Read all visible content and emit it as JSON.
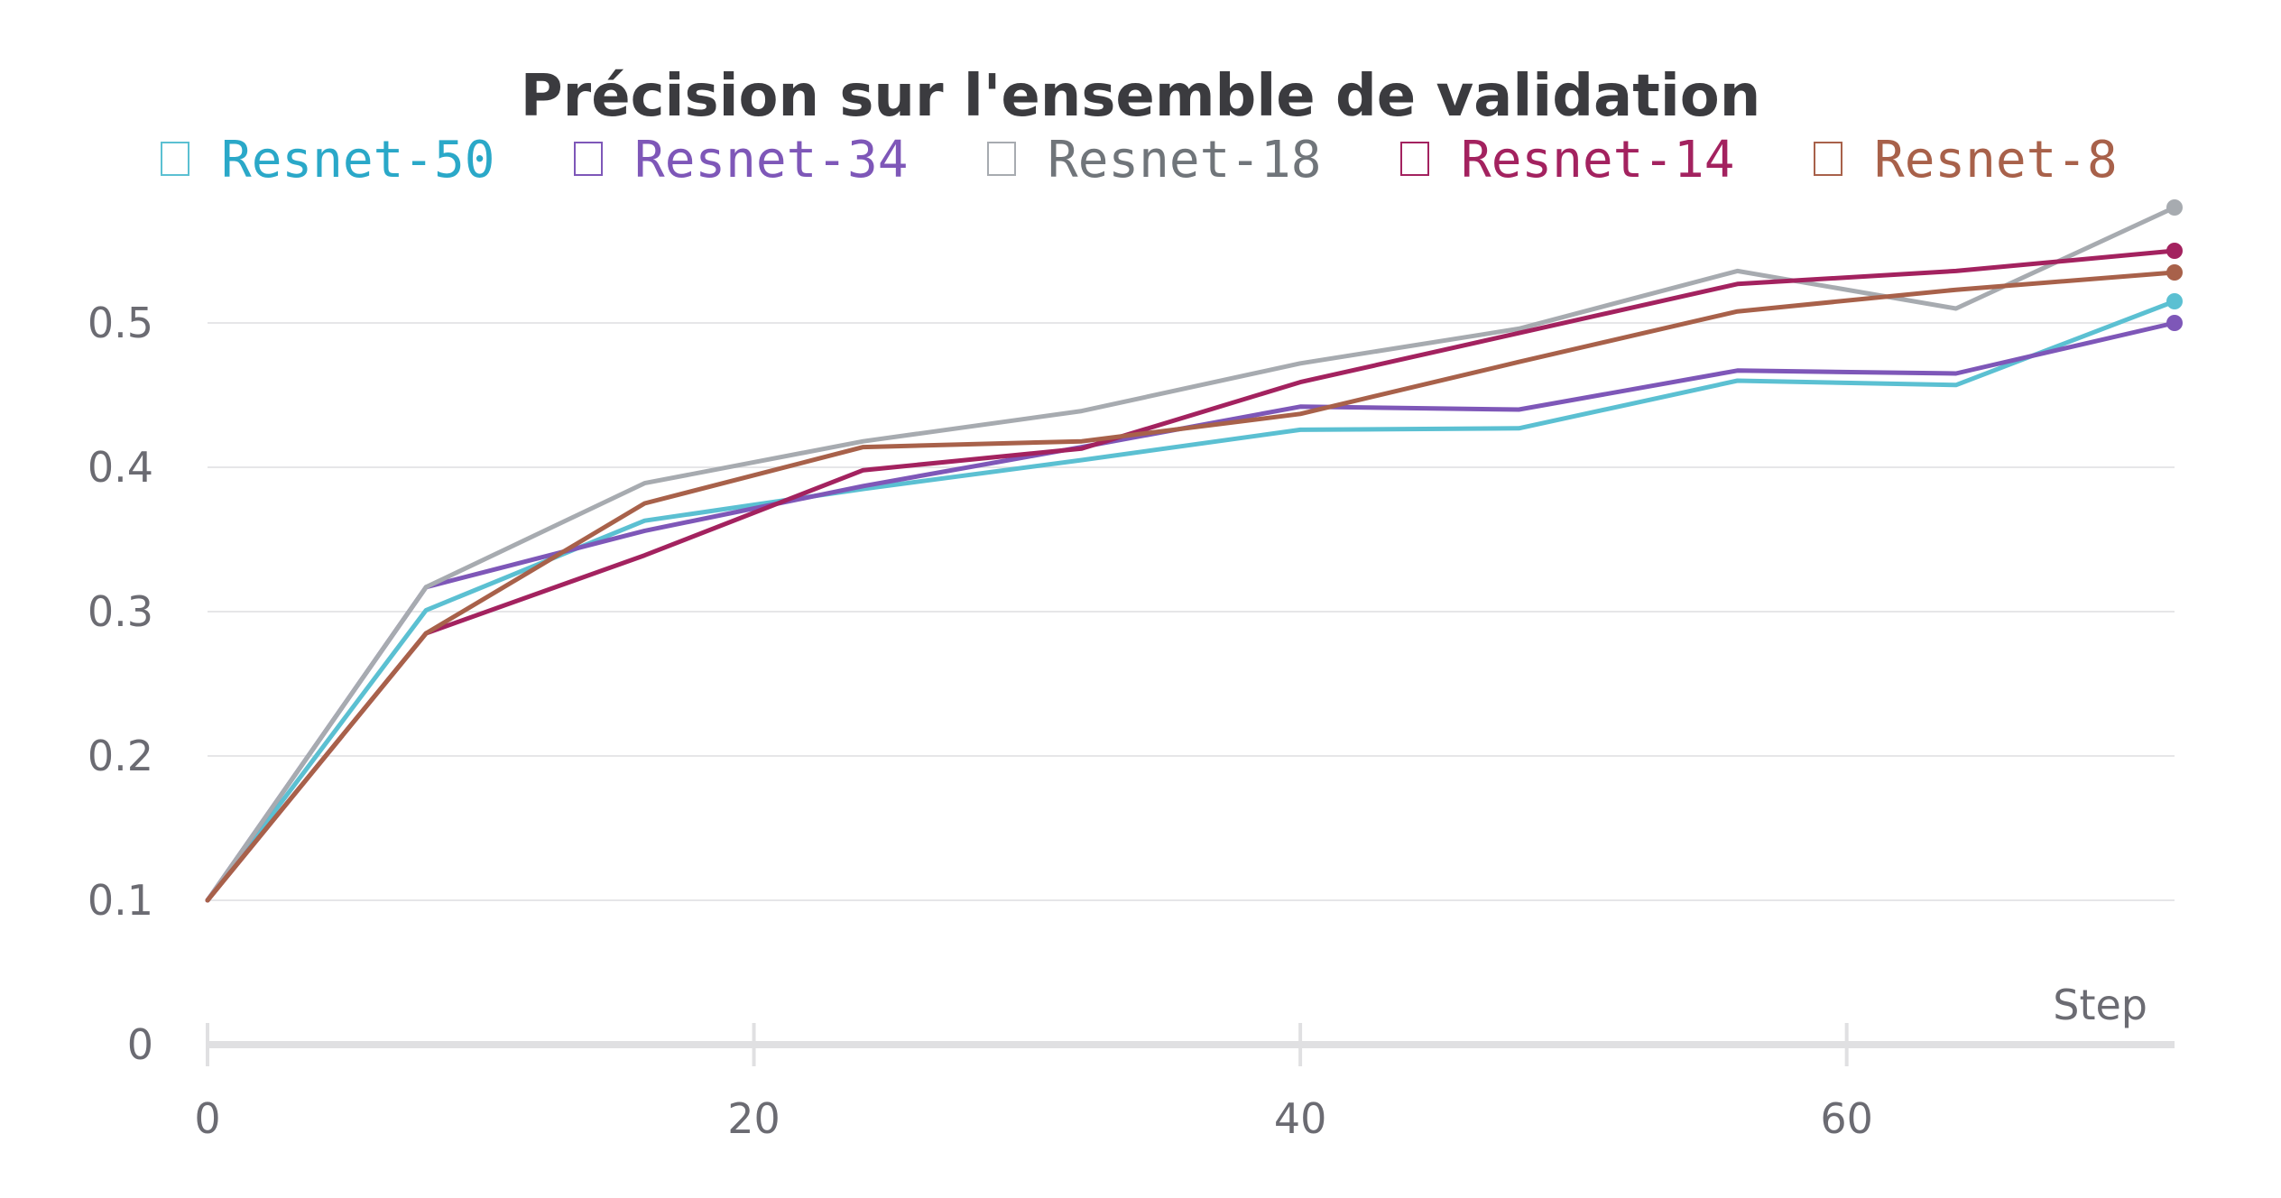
{
  "chart_data": {
    "type": "line",
    "title": "Précision sur l'ensemble de validation",
    "xlabel": "Step",
    "ylabel": "",
    "x": [
      0,
      8,
      16,
      24,
      32,
      40,
      48,
      56,
      64,
      72
    ],
    "xlim": [
      0,
      72
    ],
    "ylim": [
      0,
      0.58
    ],
    "xticks": [
      0,
      20,
      40,
      60
    ],
    "yticks": [
      0,
      0.1,
      0.2,
      0.3,
      0.4,
      0.5
    ],
    "ytick_labels": [
      "0",
      "0.1",
      "0.2",
      "0.3",
      "0.4",
      "0.5"
    ],
    "grid": "horizontal",
    "legend": "top",
    "series": [
      {
        "name": "Resnet-50",
        "color": "#5bc0d2",
        "label_color": "#2aa8c8",
        "values": [
          0.1,
          0.301,
          0.363,
          0.385,
          0.405,
          0.426,
          0.427,
          0.46,
          0.457,
          0.515
        ]
      },
      {
        "name": "Resnet-34",
        "color": "#7e57b8",
        "label_color": "#7e57b8",
        "values": [
          0.1,
          0.317,
          0.356,
          0.387,
          0.414,
          0.442,
          0.44,
          0.467,
          0.465,
          0.5
        ]
      },
      {
        "name": "Resnet-18",
        "color": "#a7abb0",
        "label_color": "#70757a",
        "values": [
          0.1,
          0.317,
          0.389,
          0.418,
          0.439,
          0.472,
          0.496,
          0.536,
          0.51,
          0.58
        ]
      },
      {
        "name": "Resnet-14",
        "color": "#a3225f",
        "label_color": "#a3225f",
        "values": [
          0.1,
          0.285,
          0.339,
          0.398,
          0.413,
          0.459,
          0.493,
          0.527,
          0.536,
          0.55
        ]
      },
      {
        "name": "Resnet-8",
        "color": "#a8614a",
        "label_color": "#a8614a",
        "values": [
          0.1,
          0.285,
          0.375,
          0.414,
          0.418,
          0.437,
          0.473,
          0.508,
          0.523,
          0.535
        ]
      }
    ]
  }
}
